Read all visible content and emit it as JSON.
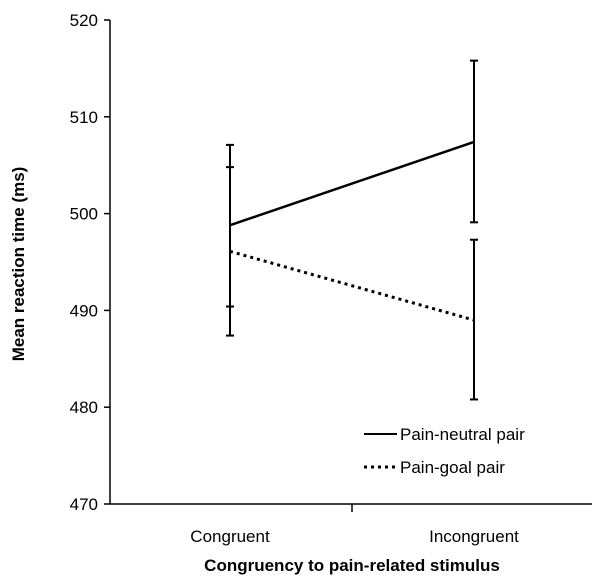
{
  "chart_data": {
    "type": "line",
    "categories": [
      "Congruent",
      "Incongruent"
    ],
    "xlabel": "Congruency to pain-related stimulus",
    "ylabel": "Mean reaction time (ms)",
    "ylim": [
      470,
      520
    ],
    "yticks": [
      470,
      480,
      490,
      500,
      510,
      520
    ],
    "grid": false,
    "legend_position": "bottom-right",
    "series": [
      {
        "name": "Pain-neutral pair",
        "line_style": "solid",
        "color": "#000000",
        "values": [
          498.8,
          507.4
        ],
        "error_low": [
          490.4,
          499.1
        ],
        "error_high": [
          507.1,
          515.8
        ]
      },
      {
        "name": "Pain-goal pair",
        "line_style": "dotted",
        "color": "#000000",
        "values": [
          496.1,
          489.0
        ],
        "error_low": [
          487.4,
          480.8
        ],
        "error_high": [
          504.8,
          497.3
        ]
      }
    ]
  }
}
